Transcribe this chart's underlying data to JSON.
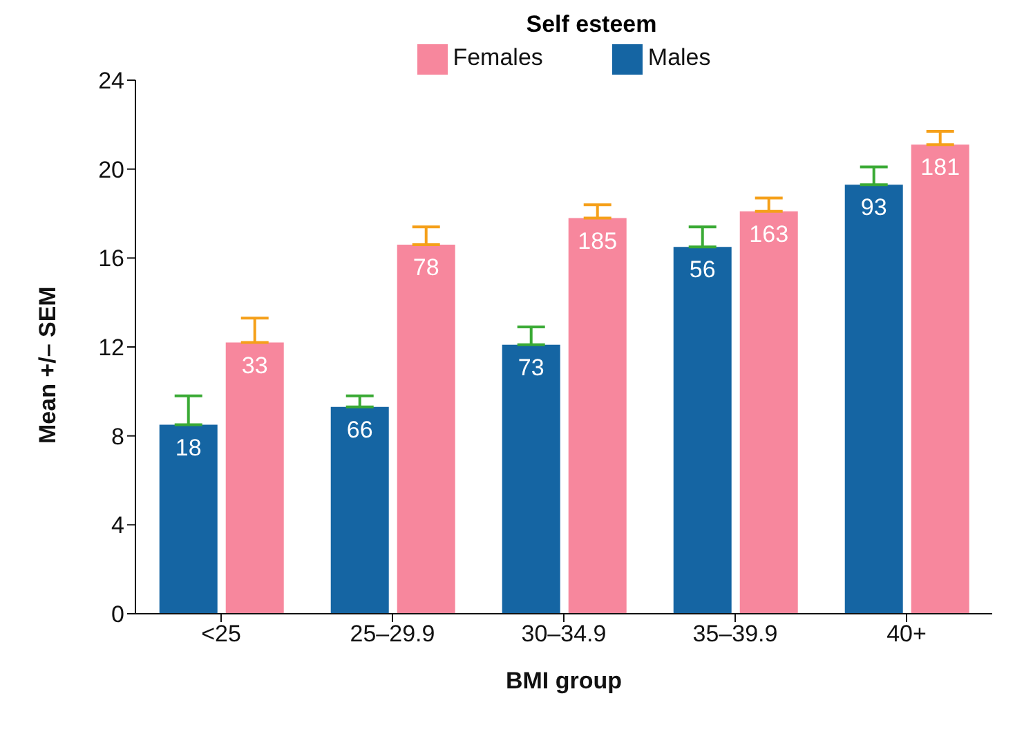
{
  "chart_data": {
    "type": "bar",
    "title": "Self esteem",
    "xlabel": "BMI group",
    "ylabel": "Mean +/– SEM",
    "categories": [
      "<25",
      "25–29.9",
      "30–34.9",
      "35–39.9",
      "40+"
    ],
    "series": [
      {
        "name": "Males",
        "color": "#1565a3",
        "values": [
          8.5,
          9.3,
          12.1,
          16.5,
          19.3
        ],
        "errors": [
          [
            8.5,
            9.8
          ],
          [
            9.3,
            9.8
          ],
          [
            12.1,
            12.9
          ],
          [
            16.5,
            17.4
          ],
          [
            19.3,
            20.1
          ]
        ]
      },
      {
        "name": "Females",
        "color": "#f7879d",
        "values": [
          12.2,
          16.6,
          17.8,
          18.1,
          21.1
        ],
        "errors": [
          [
            12.2,
            13.3
          ],
          [
            16.6,
            17.4
          ],
          [
            17.8,
            18.4
          ],
          [
            18.1,
            18.7
          ],
          [
            21.1,
            21.7
          ]
        ]
      }
    ],
    "annotations": [
      {
        "text": "18",
        "x": "<25",
        "y": 8.5
      },
      {
        "text": "33",
        "x": "<25",
        "y": 12.2
      },
      {
        "text": "66",
        "x": "25–29.9",
        "y": 9.3
      },
      {
        "text": "78",
        "x": "25–29.9",
        "y": 16.6
      },
      {
        "text": "73",
        "x": "30–34.9",
        "y": 12.1
      },
      {
        "text": "185",
        "x": "30–34.9",
        "y": 17.8
      },
      {
        "text": "56",
        "x": "35–39.9",
        "y": 16.5
      },
      {
        "text": "163",
        "x": "35–39.9",
        "y": 18.1
      },
      {
        "text": "93",
        "x": "40+",
        "y": 19.3
      },
      {
        "text": "181",
        "x": "40+",
        "y": 21.1
      }
    ],
    "ylim": [
      0,
      24
    ],
    "yticks": [
      0,
      4,
      8,
      12,
      16,
      20,
      24
    ],
    "grid": false,
    "legend": "top"
  }
}
